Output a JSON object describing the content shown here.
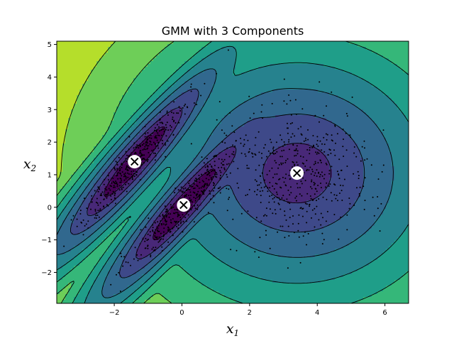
{
  "chart_data": {
    "type": "scatter",
    "title": "GMM with 3 Components",
    "xlabel": {
      "base": "x",
      "sub": "1"
    },
    "ylabel": {
      "base": "x",
      "sub": "2"
    },
    "xlim": [
      -3.7,
      6.7
    ],
    "ylim": [
      -2.95,
      5.1
    ],
    "xticks": [
      -2,
      0,
      2,
      4,
      6
    ],
    "yticks": [
      -2,
      -1,
      0,
      1,
      2,
      3,
      4,
      5
    ],
    "grid": false,
    "contour_levels": 8,
    "colormap": [
      "#fde725",
      "#b5de2b",
      "#6ece58",
      "#35b779",
      "#1f9e89",
      "#26828e",
      "#31688e",
      "#3e4989",
      "#482878",
      "#440154"
    ],
    "components": [
      {
        "mean": [
          -1.4,
          1.4
        ],
        "cov": [
          [
            0.63,
            0.7
          ],
          [
            0.7,
            0.88
          ]
        ],
        "weight": 0.3
      },
      {
        "mean": [
          0.05,
          0.07
        ],
        "cov": [
          [
            0.63,
            0.7
          ],
          [
            0.7,
            0.88
          ]
        ],
        "weight": 0.3
      },
      {
        "mean": [
          3.4,
          1.05
        ],
        "cov": [
          [
            1.16,
            0.0
          ],
          [
            0.0,
            0.96
          ]
        ],
        "weight": 0.4
      }
    ],
    "centroids": [
      {
        "x": -1.4,
        "y": 1.4
      },
      {
        "x": 0.05,
        "y": 0.07
      },
      {
        "x": 3.4,
        "y": 1.05
      }
    ],
    "sample_points": 1250
  },
  "colors": {
    "points": "#000000",
    "contour_lines": "#000000",
    "centroid_fill": "#ffffff",
    "centroid_mark": "#000000"
  }
}
